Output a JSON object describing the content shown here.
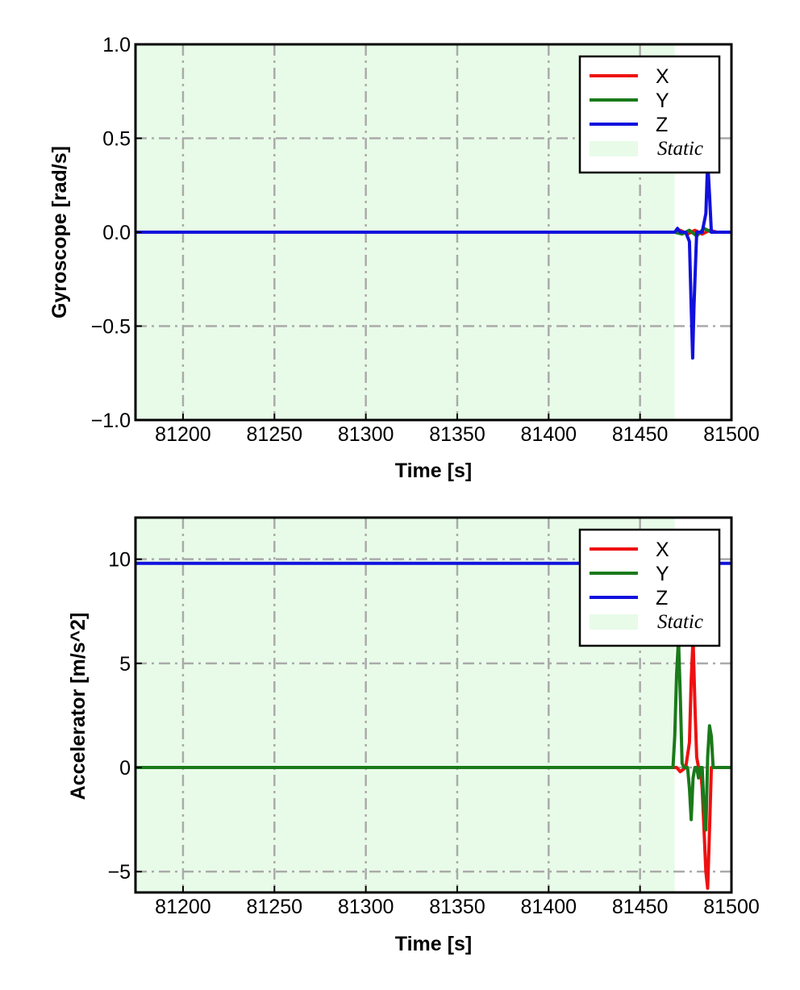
{
  "chart_data": [
    {
      "type": "line",
      "xlabel": "Time [s]",
      "ylabel": "Gyroscope [rad/s]",
      "xlim": [
        81174,
        81500
      ],
      "ylim": [
        -1.0,
        1.0
      ],
      "xticks": [
        81200,
        81250,
        81300,
        81350,
        81400,
        81450,
        81500
      ],
      "xtick_labels": [
        "81200",
        "81250",
        "81300",
        "81350",
        "81400",
        "81450",
        "81500"
      ],
      "yticks": [
        -1.0,
        -0.5,
        0.0,
        0.5,
        1.0
      ],
      "ytick_labels": [
        "−1.0",
        "−0.5",
        "0.0",
        "0.5",
        "1.0"
      ],
      "grid": true,
      "legend_position": "top-right",
      "shaded_region": {
        "label": "Static",
        "x_start": 81174,
        "x_end": 81469,
        "color": "#e8fbe8"
      },
      "series": [
        {
          "name": "X",
          "color": "#ee1111",
          "x": [
            81174,
            81469,
            81472,
            81476,
            81480,
            81484,
            81488,
            81492,
            81500
          ],
          "y": [
            0,
            0,
            0.01,
            -0.01,
            0.01,
            -0.01,
            0.01,
            0,
            0
          ]
        },
        {
          "name": "Y",
          "color": "#1a7a1a",
          "x": [
            81174,
            81469,
            81473,
            81477,
            81481,
            81485,
            81489,
            81500
          ],
          "y": [
            0,
            0,
            -0.01,
            0.01,
            -0.02,
            0.02,
            0,
            0
          ]
        },
        {
          "name": "Z",
          "color": "#1111dd",
          "x": [
            81174,
            81469,
            81470.5,
            81472,
            81475,
            81477,
            81478,
            81478.8,
            81479.5,
            81481,
            81484,
            81486,
            81487,
            81488,
            81489,
            81491,
            81500
          ],
          "y": [
            0,
            0,
            0.02,
            0,
            0,
            -0.05,
            -0.4,
            -0.67,
            -0.4,
            0,
            0,
            0.1,
            0.38,
            0.2,
            0,
            0,
            0
          ]
        }
      ]
    },
    {
      "type": "line",
      "xlabel": "Time [s]",
      "ylabel": "Accelerator [m/s^2]",
      "xlim": [
        81174,
        81500
      ],
      "ylim": [
        -6,
        12
      ],
      "xticks": [
        81200,
        81250,
        81300,
        81350,
        81400,
        81450,
        81500
      ],
      "xtick_labels": [
        "81200",
        "81250",
        "81300",
        "81350",
        "81400",
        "81450",
        "81500"
      ],
      "yticks": [
        -5,
        0,
        5,
        10
      ],
      "ytick_labels": [
        "−5",
        "0",
        "5",
        "10"
      ],
      "grid": true,
      "legend_position": "top-right",
      "shaded_region": {
        "label": "Static",
        "x_start": 81174,
        "x_end": 81469,
        "color": "#e8fbe8"
      },
      "series": [
        {
          "name": "X",
          "color": "#ee1111",
          "x": [
            81174,
            81469,
            81470,
            81472,
            81475,
            81477,
            81478,
            81479,
            81480,
            81481,
            81482,
            81483,
            81484,
            81485,
            81486,
            81487,
            81488,
            81489,
            81490,
            81492,
            81500
          ],
          "y": [
            0,
            0,
            0,
            -0.2,
            0,
            1.2,
            4.2,
            6.2,
            3.0,
            0.5,
            0,
            0,
            -1,
            -3,
            -5,
            -5.8,
            -3,
            0,
            0,
            0,
            0
          ]
        },
        {
          "name": "Y",
          "color": "#1a7a1a",
          "x": [
            81174,
            81468,
            81469,
            81470,
            81471,
            81472,
            81473,
            81474,
            81476,
            81477,
            81478,
            81479,
            81480,
            81481,
            81482,
            81483,
            81484,
            81485,
            81486,
            81487,
            81488,
            81489,
            81490,
            81492,
            81500
          ],
          "y": [
            0,
            0,
            1.5,
            4.5,
            6.2,
            3.5,
            0.2,
            0,
            0,
            -1,
            -2.5,
            -0.5,
            0,
            0,
            -0.5,
            0,
            0,
            -2,
            -3,
            0.5,
            2.0,
            1.5,
            0,
            0,
            0
          ]
        },
        {
          "name": "Z",
          "color": "#1111dd",
          "x": [
            81174,
            81500
          ],
          "y": [
            9.8,
            9.8
          ]
        }
      ]
    }
  ],
  "legend": {
    "entries": [
      {
        "label": "X",
        "color": "#ee1111"
      },
      {
        "label": "Y",
        "color": "#1a7a1a"
      },
      {
        "label": "Z",
        "color": "#1111dd"
      }
    ],
    "static_label": "Static",
    "static_color": "#e8fbe8"
  }
}
